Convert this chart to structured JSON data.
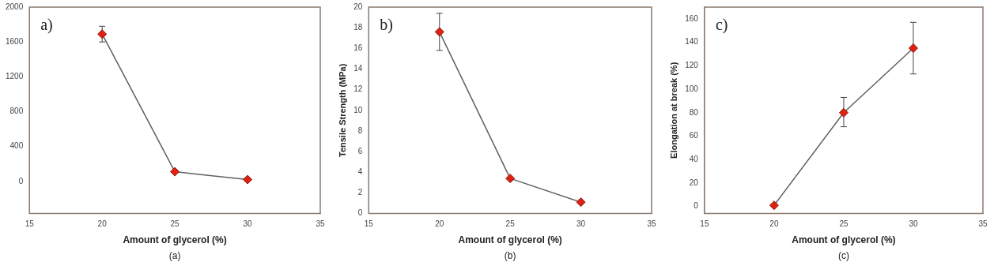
{
  "chart_data": [
    {
      "type": "line",
      "xlabel": "Amount of glycerol (%)",
      "x": [
        20,
        25,
        30
      ],
      "xlim": [
        15,
        35
      ],
      "xticks": [
        15,
        20,
        25,
        30,
        35
      ],
      "ylim": [
        -370,
        2000
      ],
      "yticks": [
        0,
        400,
        800,
        1200,
        1600,
        2000
      ],
      "marker": "diamond",
      "grid": false,
      "legend": false,
      "annotations": [
        "a)",
        "(a)"
      ],
      "series": [
        {
          "color": "#e02010",
          "values": [
            1690,
            110,
            20
          ],
          "errors": [
            90,
            null,
            null
          ]
        }
      ]
    },
    {
      "type": "line",
      "xlabel": "Amount of glycerol (%)",
      "ylabel": "Tensile Strength (MPa)",
      "x": [
        20,
        25,
        30
      ],
      "xlim": [
        15,
        35
      ],
      "xticks": [
        15,
        20,
        25,
        30,
        35
      ],
      "ylim": [
        0,
        20
      ],
      "yticks": [
        0,
        2,
        4,
        6,
        8,
        10,
        12,
        14,
        16,
        18,
        20
      ],
      "marker": "diamond",
      "grid": false,
      "legend": false,
      "annotations": [
        "b)",
        "(b)"
      ],
      "series": [
        {
          "color": "#e02010",
          "values": [
            17.6,
            3.4,
            1.1
          ],
          "errors": [
            1.8,
            null,
            null
          ]
        }
      ]
    },
    {
      "type": "line",
      "xlabel": "Amount of glycerol (%)",
      "ylabel": "Elongation at break (%)",
      "x": [
        20,
        25,
        30
      ],
      "xlim": [
        15,
        35
      ],
      "xticks": [
        15,
        20,
        25,
        30,
        35
      ],
      "ylim": [
        -6,
        170
      ],
      "yticks": [
        0,
        20,
        40,
        60,
        80,
        100,
        120,
        140,
        160
      ],
      "marker": "diamond",
      "grid": false,
      "legend": false,
      "annotations": [
        "c)",
        "(c)"
      ],
      "series": [
        {
          "color": "#e02010",
          "values": [
            1,
            80,
            135
          ],
          "errors": [
            null,
            [
              68,
              93
            ],
            [
              113,
              157
            ]
          ]
        }
      ]
    }
  ]
}
